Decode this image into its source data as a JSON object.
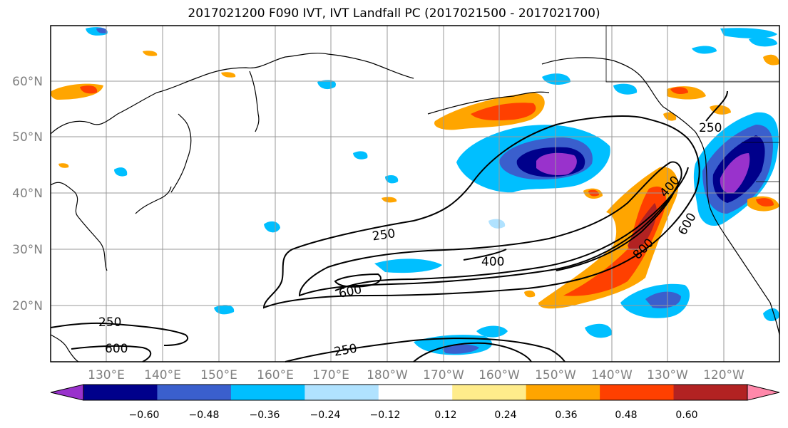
{
  "title": "2017021200 F090 IVT, IVT Landfall PC (2017021500 - 2017021700)",
  "lat_labels": [
    "60°N",
    "50°N",
    "40°N",
    "30°N",
    "20°N"
  ],
  "lon_labels": [
    "130°E",
    "140°E",
    "150°E",
    "160°E",
    "170°E",
    "180°W",
    "170°W",
    "160°W",
    "150°W",
    "140°W",
    "130°W",
    "120°W"
  ],
  "contour_labels": [
    "250",
    "400",
    "600",
    "800",
    "250",
    "400",
    "600",
    "250",
    "600",
    "250"
  ],
  "colorbar": {
    "colors": [
      "#9932cc",
      "#00008b",
      "#3a5fcd",
      "#00bfff",
      "#b0e2ff",
      "#ffffff",
      "#ffec8b",
      "#ffa500",
      "#ff4000",
      "#b22222",
      "#ff88aa"
    ],
    "tick_labels": [
      "−0.60",
      "−0.48",
      "−0.36",
      "−0.24",
      "−0.12",
      "0.12",
      "0.24",
      "0.36",
      "0.48",
      "0.60"
    ]
  },
  "colors": {
    "grid": "#999999",
    "axis_label": "#808080",
    "contour": "#000000"
  }
}
